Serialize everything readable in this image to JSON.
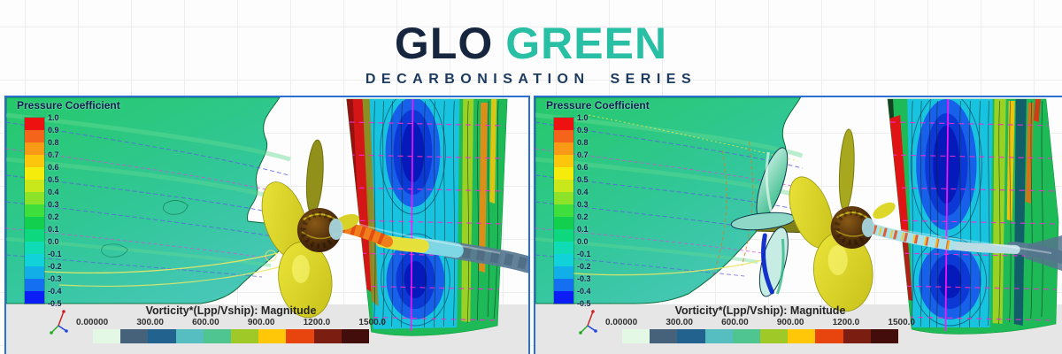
{
  "header": {
    "title_primary": "GLO",
    "title_secondary": "GREEN",
    "subtitle": "DECARBONISATION SERIES",
    "colors": {
      "title_primary": "#17263F",
      "title_secondary": "#29BFA5",
      "subtitle": "#1C3A5E"
    }
  },
  "panels": [
    {
      "position": "left",
      "legend_title": "Pressure Coefficient",
      "legend_ticks": [
        "1.0",
        "0.9",
        "0.8",
        "0.7",
        "0.6",
        "0.5",
        "0.4",
        "0.3",
        "0.2",
        "0.1",
        "0.0",
        "-0.1",
        "-0.2",
        "-0.3",
        "-0.4",
        "-0.5"
      ],
      "legend_colors": [
        "#EE1111",
        "#F4641A",
        "#F99A16",
        "#FCC60D",
        "#F6EC0B",
        "#C8E81C",
        "#8CE32A",
        "#3EDE3C",
        "#12D04E",
        "#0ED87E",
        "#0FDCB4",
        "#10D2D8",
        "#12AEE8",
        "#1470F0",
        "#0B1EF5"
      ],
      "colorbar_title": "Vorticity*(Lpp/Vship): Magnitude",
      "colorbar_ticks": [
        "0.00000",
        "300.00",
        "600.00",
        "900.00",
        "1200.0",
        "1500.0"
      ],
      "colorbar_colors": [
        "#E3F8E5",
        "#46617A",
        "#22628F",
        "#56BDC1",
        "#4FC591",
        "#9FC926",
        "#FFC708",
        "#E8440E",
        "#7C1D12",
        "#420D0A"
      ]
    },
    {
      "position": "right",
      "legend_title": "Pressure Coefficient",
      "legend_ticks": [
        "1.0",
        "0.9",
        "0.8",
        "0.7",
        "0.6",
        "0.5",
        "0.4",
        "0.3",
        "0.2",
        "0.1",
        "0.0",
        "-0.1",
        "-0.2",
        "-0.3",
        "-0.4",
        "-0.5"
      ],
      "legend_colors": [
        "#EE1111",
        "#F4641A",
        "#F99A16",
        "#FCC60D",
        "#F6EC0B",
        "#C8E81C",
        "#8CE32A",
        "#3EDE3C",
        "#12D04E",
        "#0ED87E",
        "#0FDCB4",
        "#10D2D8",
        "#12AEE8",
        "#1470F0",
        "#0B1EF5"
      ],
      "colorbar_title": "Vorticity*(Lpp/Vship): Magnitude",
      "colorbar_ticks": [
        "0.00000",
        "300.00",
        "600.00",
        "900.00",
        "1200.0",
        "1500.0"
      ],
      "colorbar_colors": [
        "#E3F8E5",
        "#46617A",
        "#22628F",
        "#56BDC1",
        "#4FC591",
        "#9FC926",
        "#FFC708",
        "#E8440E",
        "#7C1D12",
        "#420D0A"
      ]
    }
  ],
  "chart_data": [
    {
      "type": "heatmap",
      "position": "left",
      "scene": "CFD contour view: ship stern hull with propeller, hub vortex tube and rudder",
      "title": "Pressure Coefficient",
      "legend": {
        "label": "Pressure Coefficient",
        "range": [
          -0.5,
          1.0
        ],
        "tick_step": 0.1,
        "ticks": [
          1.0,
          0.9,
          0.8,
          0.7,
          0.6,
          0.5,
          0.4,
          0.3,
          0.2,
          0.1,
          0.0,
          -0.1,
          -0.2,
          -0.3,
          -0.4,
          -0.5
        ],
        "colors": [
          "#EE1111",
          "#F4641A",
          "#F99A16",
          "#FCC60D",
          "#F6EC0B",
          "#C8E81C",
          "#8CE32A",
          "#3EDE3C",
          "#12D04E",
          "#0ED87E",
          "#0FDCB4",
          "#10D2D8",
          "#12AEE8",
          "#1470F0",
          "#0B1EF5"
        ],
        "position": "top-left vertical"
      },
      "secondary_scale": {
        "label": "Vorticity*(Lpp/Vship): Magnitude",
        "range": [
          0,
          1500
        ],
        "ticks": [
          0.0,
          300.0,
          600.0,
          900.0,
          1200.0,
          1500.0
        ],
        "colors": [
          "#E3F8E5",
          "#46617A",
          "#22628F",
          "#56BDC1",
          "#4FC591",
          "#9FC926",
          "#FFC708",
          "#E8440E",
          "#7C1D12",
          "#420D0A"
        ],
        "position": "bottom horizontal"
      }
    },
    {
      "type": "heatmap",
      "position": "right",
      "scene": "CFD contour view: ship stern hull with stator fins, propeller, hub vortex tube and rudder",
      "title": "Pressure Coefficient",
      "legend": {
        "label": "Pressure Coefficient",
        "range": [
          -0.5,
          1.0
        ],
        "tick_step": 0.1,
        "ticks": [
          1.0,
          0.9,
          0.8,
          0.7,
          0.6,
          0.5,
          0.4,
          0.3,
          0.2,
          0.1,
          0.0,
          -0.1,
          -0.2,
          -0.3,
          -0.4,
          -0.5
        ],
        "colors": [
          "#EE1111",
          "#F4641A",
          "#F99A16",
          "#FCC60D",
          "#F6EC0B",
          "#C8E81C",
          "#8CE32A",
          "#3EDE3C",
          "#12D04E",
          "#0ED87E",
          "#0FDCB4",
          "#10D2D8",
          "#12AEE8",
          "#1470F0",
          "#0B1EF5"
        ],
        "position": "top-left vertical"
      },
      "secondary_scale": {
        "label": "Vorticity*(Lpp/Vship): Magnitude",
        "range": [
          0,
          1500
        ],
        "ticks": [
          0.0,
          300.0,
          600.0,
          900.0,
          1200.0,
          1500.0
        ],
        "colors": [
          "#E3F8E5",
          "#46617A",
          "#22628F",
          "#56BDC1",
          "#4FC591",
          "#9FC926",
          "#FFC708",
          "#E8440E",
          "#7C1D12",
          "#420D0A"
        ],
        "position": "bottom horizontal"
      }
    }
  ]
}
